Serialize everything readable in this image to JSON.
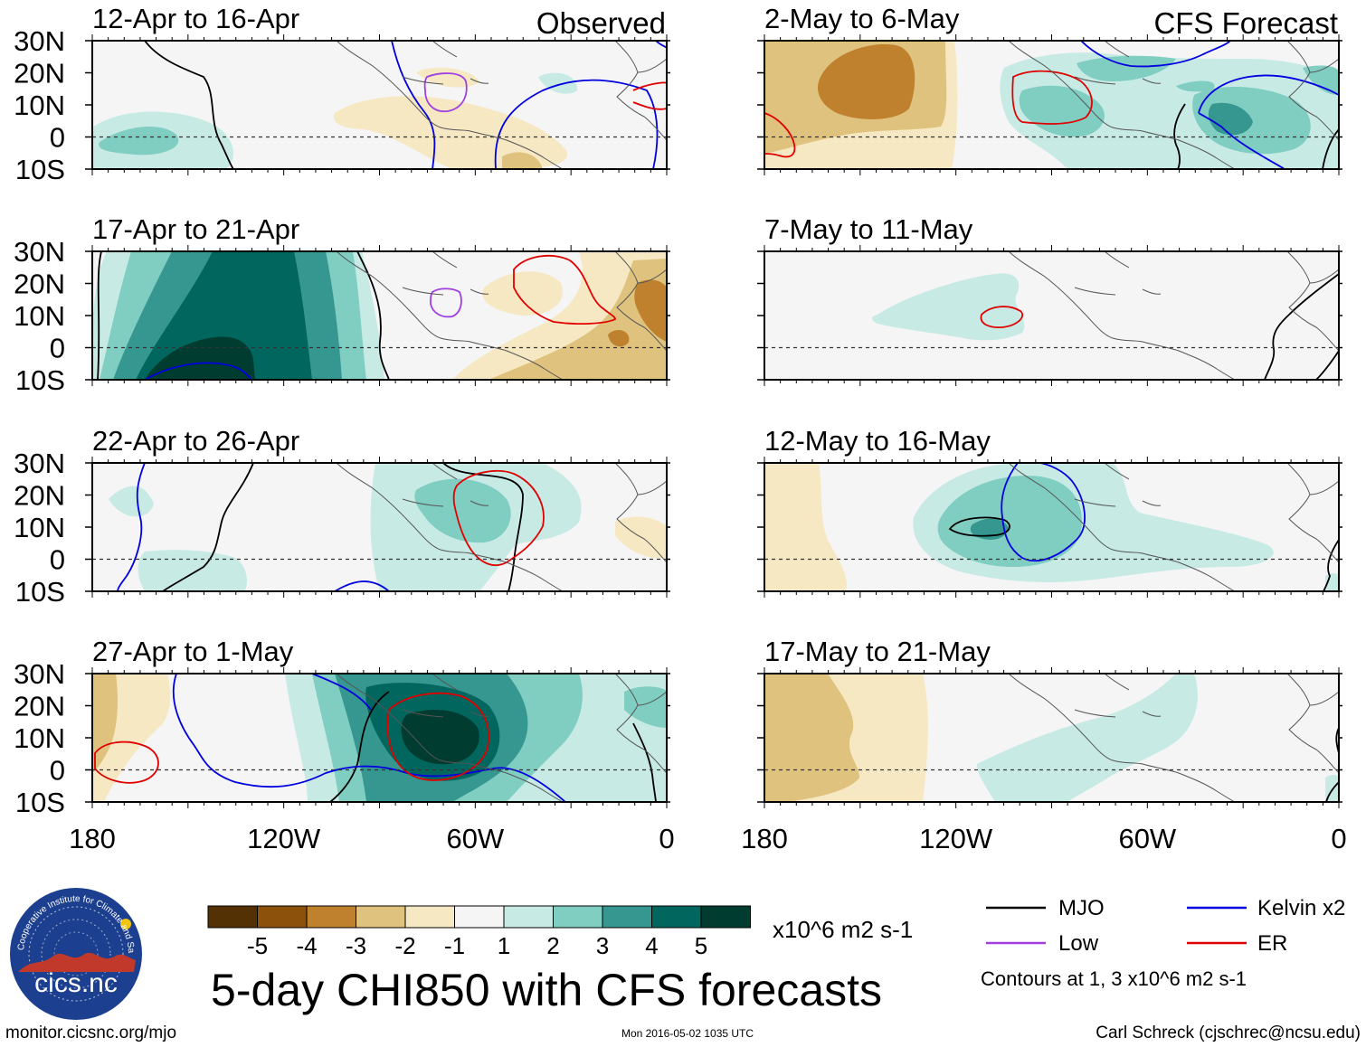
{
  "title": "5-day CHI850 with CFS forecasts",
  "units": "x10^6 m2 s-1",
  "columns": {
    "observed_label": "Observed",
    "forecast_label": "CFS Forecast"
  },
  "panels_observed": [
    {
      "label": "12-Apr to 16-Apr"
    },
    {
      "label": "17-Apr to 21-Apr"
    },
    {
      "label": "22-Apr to 26-Apr"
    },
    {
      "label": "27-Apr to 1-May"
    }
  ],
  "panels_forecast": [
    {
      "label": "2-May to 6-May"
    },
    {
      "label": "7-May to 11-May"
    },
    {
      "label": "12-May to 16-May"
    },
    {
      "label": "17-May to 21-May"
    }
  ],
  "lat_labels": [
    "30N",
    "20N",
    "10N",
    "0",
    "10S"
  ],
  "lon_labels": [
    "180",
    "120W",
    "60W",
    "0"
  ],
  "colorbar": {
    "colors": [
      "#543005",
      "#8c510a",
      "#bf812d",
      "#dfc27d",
      "#f6e8c3",
      "#f5f5f5",
      "#c7eae5",
      "#80cdc1",
      "#35978f",
      "#01665e",
      "#003c30"
    ],
    "tick_labels": [
      "-5",
      "-4",
      "-3",
      "-2",
      "-1",
      "1",
      "2",
      "3",
      "4",
      "5"
    ]
  },
  "legend": {
    "items": [
      {
        "label": "MJO",
        "color": "#000000"
      },
      {
        "label": "Kelvin x2",
        "color": "#0000e0"
      },
      {
        "label": "Low",
        "color": "#a040e0"
      },
      {
        "label": "ER",
        "color": "#e00000"
      }
    ],
    "note": "Contours at 1, 3 x10^6 m2 s-1"
  },
  "logo_text": "cics.nc",
  "logo_ring_text": "Cooperative Institute for Climate and Satellites",
  "footer": {
    "website": "monitor.cicsnc.org/mjo",
    "timestamp": "Mon 2016-05-02 1035 UTC",
    "author": "Carl Schreck (cjschrec@ncsu.edu)"
  }
}
